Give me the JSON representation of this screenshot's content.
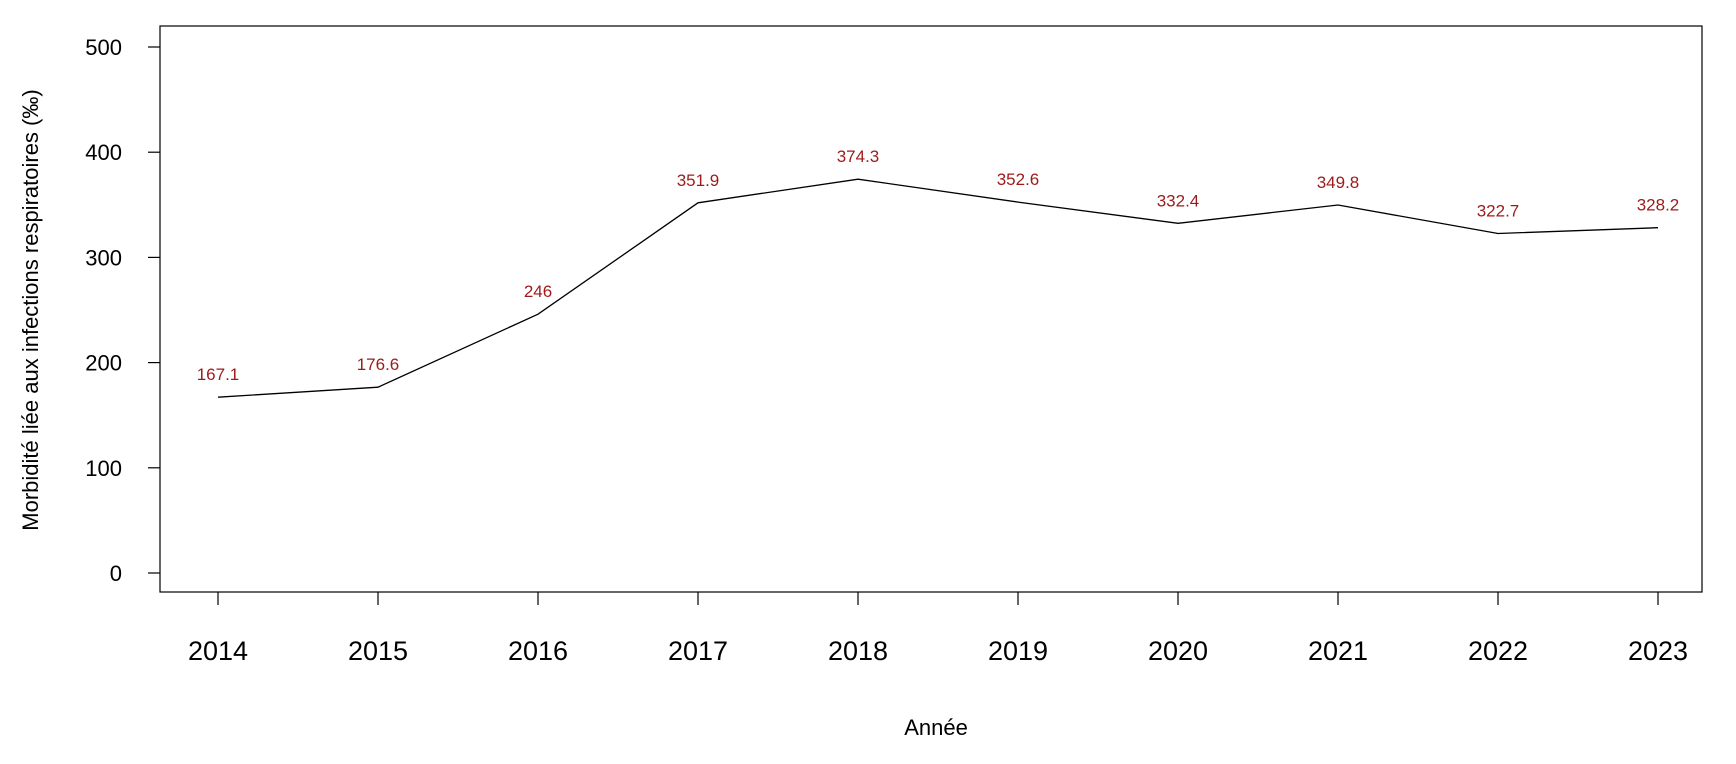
{
  "chart_data": {
    "type": "line",
    "title": "",
    "xlabel": "Année",
    "ylabel": "Morbidité liée aux infections respiratoires (‰)",
    "x": [
      "2014",
      "2015",
      "2016",
      "2017",
      "2018",
      "2019",
      "2020",
      "2021",
      "2022",
      "2023"
    ],
    "series": [
      {
        "values": [
          167.1,
          176.6,
          246,
          351.9,
          374.3,
          352.6,
          332.4,
          349.8,
          322.7,
          328.2
        ],
        "labels": [
          "167.1",
          "176.6",
          "246",
          "351.9",
          "374.3",
          "352.6",
          "332.4",
          "349.8",
          "322.7",
          "328.2"
        ],
        "line_color": "#000000",
        "label_color": "#9e1a1a"
      }
    ],
    "ylim": [
      0,
      500
    ],
    "yticks": [
      "0",
      "100",
      "200",
      "300",
      "400",
      "500"
    ],
    "grid": false,
    "legend": "none"
  }
}
